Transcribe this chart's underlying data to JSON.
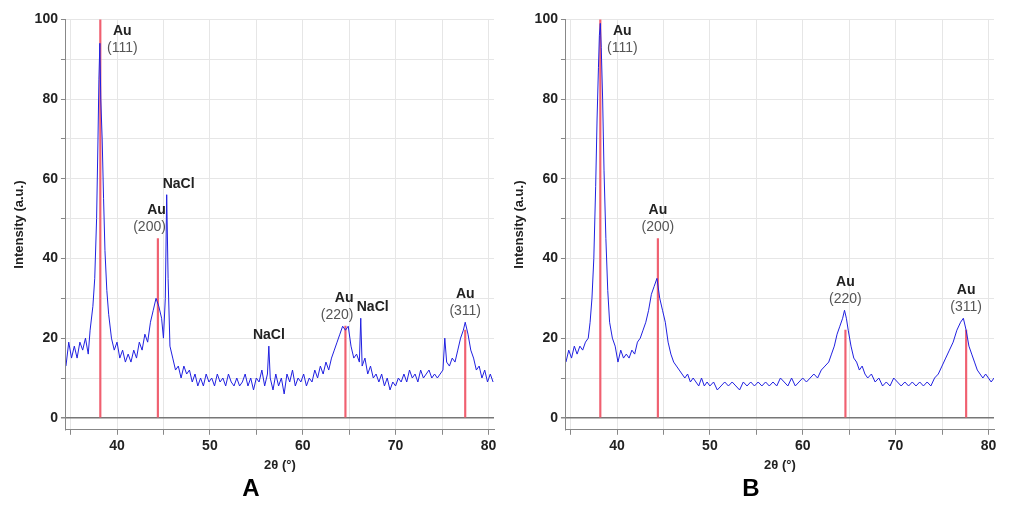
{
  "chart_data": [
    {
      "type": "line",
      "title": "A",
      "xlabel": "2θ (°)",
      "ylabel": "Intensity (a.u.)",
      "xlim": [
        34.5,
        80.6
      ],
      "ylim": [
        -3,
        100
      ],
      "xticks": [
        {
          "value": 35,
          "label": null
        },
        40,
        {
          "value": 45,
          "label": null
        },
        50,
        {
          "value": 55,
          "label": null
        },
        60,
        {
          "value": 65,
          "label": null
        },
        70,
        {
          "value": 75,
          "label": null
        },
        80
      ],
      "yticks": [
        0,
        {
          "value": 10,
          "label": null
        },
        20,
        {
          "value": 30,
          "label": null
        },
        40,
        {
          "value": 50,
          "label": null
        },
        60,
        {
          "value": 70,
          "label": null
        },
        80,
        {
          "value": 90,
          "label": null
        },
        100
      ],
      "grid": true,
      "legend": false,
      "marker": "none",
      "line_style": "solid",
      "series": [
        {
          "type": "bar",
          "color": "#f06070",
          "x": [
            38.2,
            44.4,
            64.6,
            77.5
          ],
          "values": [
            100,
            45,
            23,
            22
          ]
        },
        {
          "color": "#2020e0",
          "x": [
            34.5,
            34.8,
            35.1,
            35.4,
            35.7,
            36.0,
            36.3,
            36.6,
            36.9,
            37.1,
            37.4,
            37.6,
            37.8,
            37.95,
            38.05,
            38.15,
            38.25,
            38.4,
            38.55,
            38.7,
            38.9,
            39.1,
            39.4,
            39.7,
            40.0,
            40.3,
            40.6,
            40.9,
            41.2,
            41.5,
            41.8,
            42.1,
            42.4,
            42.7,
            43.0,
            43.3,
            43.6,
            43.9,
            44.2,
            44.5,
            44.8,
            45.0,
            45.2,
            45.35,
            45.5,
            45.7,
            46.0,
            46.3,
            46.6,
            46.9,
            47.2,
            47.5,
            47.8,
            48.1,
            48.4,
            48.7,
            49.0,
            49.3,
            49.6,
            49.9,
            50.2,
            50.5,
            50.8,
            51.1,
            51.4,
            51.7,
            52.0,
            52.3,
            52.6,
            52.9,
            53.2,
            53.5,
            53.8,
            54.1,
            54.4,
            54.7,
            55.0,
            55.3,
            55.6,
            55.9,
            56.2,
            56.35,
            56.5,
            56.8,
            57.1,
            57.4,
            57.7,
            58.0,
            58.3,
            58.6,
            58.9,
            59.2,
            59.5,
            59.8,
            60.1,
            60.4,
            60.7,
            61.0,
            61.3,
            61.6,
            61.9,
            62.2,
            62.5,
            62.8,
            63.1,
            63.4,
            63.7,
            64.0,
            64.3,
            64.6,
            64.9,
            65.2,
            65.5,
            65.8,
            66.1,
            66.25,
            66.4,
            66.7,
            67.0,
            67.3,
            67.6,
            67.9,
            68.2,
            68.5,
            68.8,
            69.1,
            69.4,
            69.7,
            70.0,
            70.3,
            70.6,
            70.9,
            71.2,
            71.5,
            71.8,
            72.1,
            72.4,
            72.7,
            73.0,
            73.3,
            73.6,
            73.9,
            74.2,
            74.5,
            74.8,
            75.1,
            75.3,
            75.5,
            75.8,
            76.1,
            76.4,
            76.7,
            77.0,
            77.3,
            77.5,
            77.8,
            78.1,
            78.4,
            78.7,
            79.0,
            79.3,
            79.6,
            79.9,
            80.2,
            80.5
          ],
          "values": [
            13,
            19,
            15,
            18,
            15,
            19,
            17,
            20,
            16,
            22,
            28,
            35,
            50,
            70,
            85,
            94,
            80,
            70,
            55,
            42,
            32,
            26,
            20,
            17,
            19,
            15,
            17,
            14,
            16,
            14,
            17,
            15,
            19,
            17,
            21,
            19,
            24,
            27,
            30,
            28,
            25,
            20,
            30,
            56,
            35,
            18,
            15,
            12,
            13,
            10,
            13,
            11,
            12,
            9,
            11,
            8,
            10,
            8,
            11,
            9,
            10,
            8,
            11,
            9,
            10,
            8,
            11,
            9,
            8,
            10,
            8,
            9,
            11,
            8,
            10,
            7,
            10,
            9,
            12,
            8,
            11,
            18,
            10,
            7,
            11,
            8,
            10,
            6,
            11,
            9,
            12,
            8,
            10,
            9,
            11,
            8,
            10,
            9,
            12,
            10,
            13,
            11,
            14,
            12,
            15,
            17,
            19,
            21,
            23,
            22,
            23,
            18,
            15,
            16,
            14,
            25,
            13,
            15,
            11,
            13,
            10,
            11,
            9,
            11,
            8,
            10,
            7,
            9,
            8,
            10,
            9,
            11,
            9,
            12,
            10,
            11,
            9,
            12,
            10,
            11,
            12,
            10,
            11,
            10,
            11,
            12,
            20,
            14,
            13,
            15,
            14,
            17,
            20,
            22,
            24,
            21,
            17,
            15,
            12,
            13,
            10,
            12,
            9,
            11,
            9
          ]
        }
      ],
      "annotations": [
        {
          "text": "Au (111)",
          "x": 38.2,
          "y": 94
        },
        {
          "text": "Au (200)",
          "x": 44.4,
          "y": 45
        },
        {
          "text": "NaCl",
          "x": 45.35,
          "y": 56
        },
        {
          "text": "NaCl",
          "x": 56.35,
          "y": 18
        },
        {
          "text": "Au (220)",
          "x": 64.6,
          "y": 23
        },
        {
          "text": "NaCl",
          "x": 66.25,
          "y": 25
        },
        {
          "text": "Au (311)",
          "x": 77.5,
          "y": 24
        }
      ]
    },
    {
      "type": "line",
      "title": "B",
      "xlabel": "2θ (°)",
      "ylabel": "Intensity (a.u.)",
      "xlim": [
        34.5,
        80.6
      ],
      "ylim": [
        -3,
        100
      ],
      "xticks": [
        {
          "value": 35,
          "label": null
        },
        40,
        {
          "value": 45,
          "label": null
        },
        50,
        {
          "value": 55,
          "label": null
        },
        60,
        {
          "value": 65,
          "label": null
        },
        70,
        {
          "value": 75,
          "label": null
        },
        80
      ],
      "yticks": [
        0,
        {
          "value": 10,
          "label": null
        },
        20,
        {
          "value": 30,
          "label": null
        },
        40,
        {
          "value": 50,
          "label": null
        },
        60,
        {
          "value": 70,
          "label": null
        },
        80,
        {
          "value": 90,
          "label": null
        },
        100
      ],
      "grid": true,
      "legend": false,
      "marker": "none",
      "line_style": "solid",
      "series": [
        {
          "type": "bar",
          "color": "#f06070",
          "x": [
            38.2,
            44.4,
            64.6,
            77.6
          ],
          "values": [
            100,
            45,
            22,
            22
          ]
        },
        {
          "color": "#2020e0",
          "x": [
            34.5,
            34.8,
            35.1,
            35.4,
            35.7,
            36.0,
            36.3,
            36.6,
            36.9,
            37.1,
            37.3,
            37.5,
            37.7,
            37.85,
            38.0,
            38.1,
            38.2,
            38.3,
            38.45,
            38.6,
            38.8,
            39.0,
            39.2,
            39.5,
            39.8,
            40.1,
            40.4,
            40.7,
            41.0,
            41.3,
            41.6,
            41.9,
            42.2,
            42.5,
            42.8,
            43.1,
            43.4,
            43.7,
            44.0,
            44.3,
            44.6,
            44.9,
            45.2,
            45.5,
            45.8,
            46.1,
            46.4,
            46.7,
            47.0,
            47.3,
            47.6,
            47.9,
            48.2,
            48.5,
            48.8,
            49.1,
            49.4,
            49.7,
            50.0,
            50.4,
            50.8,
            51.2,
            51.6,
            52.0,
            52.4,
            52.8,
            53.2,
            53.6,
            54.0,
            54.4,
            54.8,
            55.2,
            55.6,
            56.0,
            56.4,
            56.8,
            57.2,
            57.6,
            58.0,
            58.4,
            58.8,
            59.2,
            59.6,
            60.0,
            60.4,
            60.8,
            61.2,
            61.6,
            62.0,
            62.4,
            62.8,
            63.1,
            63.4,
            63.7,
            64.0,
            64.3,
            64.5,
            64.7,
            64.9,
            65.2,
            65.5,
            65.8,
            66.1,
            66.4,
            66.7,
            67.0,
            67.4,
            67.8,
            68.2,
            68.6,
            69.0,
            69.4,
            69.8,
            70.2,
            70.6,
            71.0,
            71.4,
            71.8,
            72.2,
            72.6,
            73.0,
            73.4,
            73.8,
            74.2,
            74.6,
            75.0,
            75.4,
            75.8,
            76.2,
            76.6,
            77.0,
            77.3,
            77.6,
            77.9,
            78.2,
            78.5,
            78.8,
            79.1,
            79.4,
            79.7,
            80.0,
            80.3,
            80.6
          ],
          "values": [
            14,
            17,
            15,
            18,
            16,
            18,
            17,
            19,
            20,
            24,
            30,
            40,
            58,
            75,
            88,
            96,
            99,
            93,
            80,
            62,
            45,
            32,
            24,
            20,
            18,
            14,
            17,
            15,
            16,
            15,
            17,
            16,
            19,
            20,
            22,
            24,
            27,
            31,
            33,
            35,
            30,
            27,
            24,
            19,
            16,
            14,
            13,
            12,
            11,
            10,
            11,
            9,
            10,
            9,
            8,
            10,
            8,
            9,
            8,
            9,
            7,
            8,
            9,
            8,
            9,
            8,
            7,
            9,
            8,
            9,
            8,
            9,
            8,
            9,
            8,
            9,
            8,
            10,
            9,
            8,
            10,
            8,
            9,
            10,
            9,
            10,
            11,
            10,
            12,
            13,
            14,
            16,
            18,
            21,
            23,
            25,
            27,
            25,
            22,
            18,
            15,
            14,
            12,
            13,
            11,
            10,
            11,
            9,
            10,
            8,
            9,
            8,
            10,
            9,
            8,
            9,
            8,
            9,
            8,
            9,
            8,
            9,
            8,
            10,
            11,
            13,
            15,
            17,
            19,
            22,
            24,
            25,
            22,
            18,
            16,
            14,
            12,
            11,
            10,
            11,
            10,
            9,
            10
          ]
        }
      ],
      "annotations": [
        {
          "text": "Au (111)",
          "x": 38.2,
          "y": 99
        },
        {
          "text": "Au (200)",
          "x": 44.4,
          "y": 45
        },
        {
          "text": "Au (220)",
          "x": 64.6,
          "y": 27
        },
        {
          "text": "Au (311)",
          "x": 77.6,
          "y": 25
        }
      ]
    }
  ]
}
